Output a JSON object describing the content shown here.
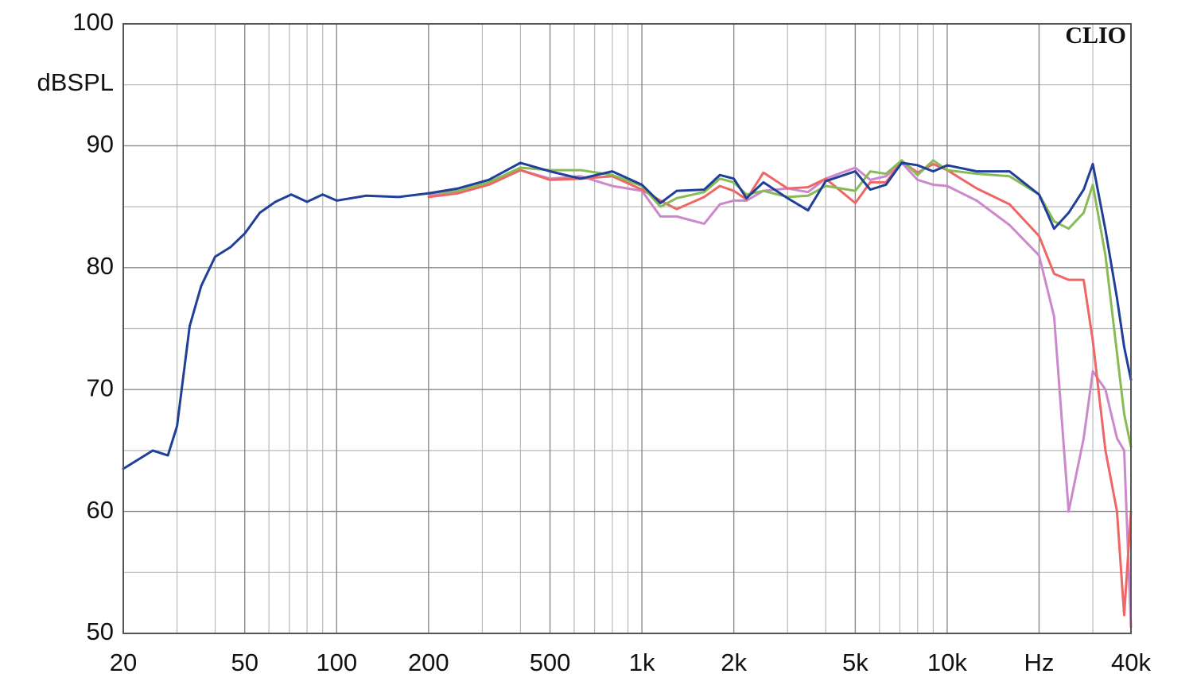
{
  "chart_data": {
    "type": "line",
    "ylabel": "dBSPL",
    "brand": "CLIO",
    "xscale": "log",
    "grid": true,
    "xlim": [
      20,
      40000
    ],
    "ylim": [
      50,
      100
    ],
    "xticks": [
      20,
      50,
      100,
      200,
      500,
      {
        "value": 1000,
        "label": "1k"
      },
      {
        "value": 2000,
        "label": "2k"
      },
      {
        "value": 5000,
        "label": "5k"
      },
      {
        "value": 10000,
        "label": "10k"
      },
      {
        "value": 20000,
        "label": "Hz"
      },
      {
        "value": 40000,
        "label": "40k"
      }
    ],
    "minor_xticks": [
      30,
      40,
      60,
      70,
      80,
      90,
      300,
      400,
      600,
      700,
      800,
      900,
      3000,
      4000,
      6000,
      7000,
      8000,
      9000,
      30000
    ],
    "yticks": [
      50,
      60,
      70,
      80,
      90,
      100
    ],
    "minor_yticks": [
      55,
      65,
      75,
      85,
      95
    ],
    "x": [
      20,
      25,
      28,
      30,
      33,
      36,
      40,
      45,
      50,
      56,
      63,
      71,
      80,
      90,
      100,
      125,
      160,
      200,
      250,
      315,
      400,
      500,
      630,
      800,
      1000,
      1150,
      1300,
      1600,
      1800,
      2000,
      2200,
      2500,
      3000,
      3500,
      4000,
      5000,
      5600,
      6300,
      7100,
      8000,
      9000,
      10000,
      12500,
      16000,
      20000,
      22400,
      25000,
      28000,
      30000,
      33000,
      36000,
      38000,
      40000
    ],
    "series": [
      {
        "color": "#cc88cc",
        "values": [
          null,
          null,
          null,
          null,
          null,
          null,
          null,
          null,
          null,
          null,
          null,
          null,
          null,
          null,
          null,
          null,
          null,
          86.0,
          86.2,
          86.8,
          88.0,
          87.3,
          87.5,
          86.7,
          86.3,
          84.2,
          84.2,
          83.6,
          85.2,
          85.5,
          85.5,
          86.3,
          86.5,
          86.2,
          87.3,
          88.2,
          87.2,
          87.5,
          88.6,
          87.2,
          86.8,
          86.7,
          85.5,
          83.5,
          81.0,
          76.0,
          60.0,
          66.0,
          71.5,
          70.0,
          66.0,
          65.0,
          50.5
        ]
      },
      {
        "color": "#ee6666",
        "values": [
          null,
          null,
          null,
          null,
          null,
          null,
          null,
          null,
          null,
          null,
          null,
          null,
          null,
          null,
          null,
          null,
          null,
          85.8,
          86.1,
          86.8,
          88.0,
          87.2,
          87.3,
          87.5,
          86.4,
          85.5,
          84.8,
          85.8,
          86.7,
          86.3,
          85.6,
          87.8,
          86.5,
          86.6,
          87.3,
          85.3,
          87.0,
          87.0,
          88.7,
          87.8,
          88.5,
          88.0,
          86.5,
          85.2,
          82.6,
          79.5,
          79.0,
          79.0,
          74.0,
          65.0,
          60.0,
          51.5,
          60.0
        ]
      },
      {
        "color": "#88bb55",
        "values": [
          null,
          null,
          null,
          null,
          null,
          null,
          null,
          null,
          null,
          null,
          null,
          null,
          null,
          null,
          null,
          null,
          null,
          86.1,
          86.3,
          87.0,
          88.2,
          88.0,
          88.0,
          87.6,
          86.7,
          85.0,
          85.7,
          86.2,
          87.3,
          87.0,
          86.0,
          86.3,
          85.8,
          85.9,
          86.7,
          86.3,
          87.9,
          87.7,
          88.8,
          87.6,
          88.8,
          88.0,
          87.7,
          87.5,
          86.0,
          83.8,
          83.2,
          84.5,
          86.8,
          81.0,
          73.0,
          68.0,
          65.3
        ]
      },
      {
        "color": "#1f3f99",
        "values": [
          63.5,
          65.0,
          64.6,
          67.0,
          75.2,
          78.5,
          80.9,
          81.7,
          82.8,
          84.5,
          85.4,
          86.0,
          85.4,
          86.0,
          85.5,
          85.9,
          85.8,
          86.1,
          86.5,
          87.2,
          88.6,
          87.9,
          87.3,
          87.9,
          86.8,
          85.3,
          86.3,
          86.4,
          87.6,
          87.3,
          85.7,
          87.0,
          85.7,
          84.7,
          87.1,
          87.9,
          86.4,
          86.8,
          88.6,
          88.4,
          87.9,
          88.4,
          87.9,
          87.9,
          86.0,
          83.2,
          84.5,
          86.4,
          88.5,
          83.1,
          77.5,
          73.5,
          70.8
        ]
      }
    ]
  }
}
